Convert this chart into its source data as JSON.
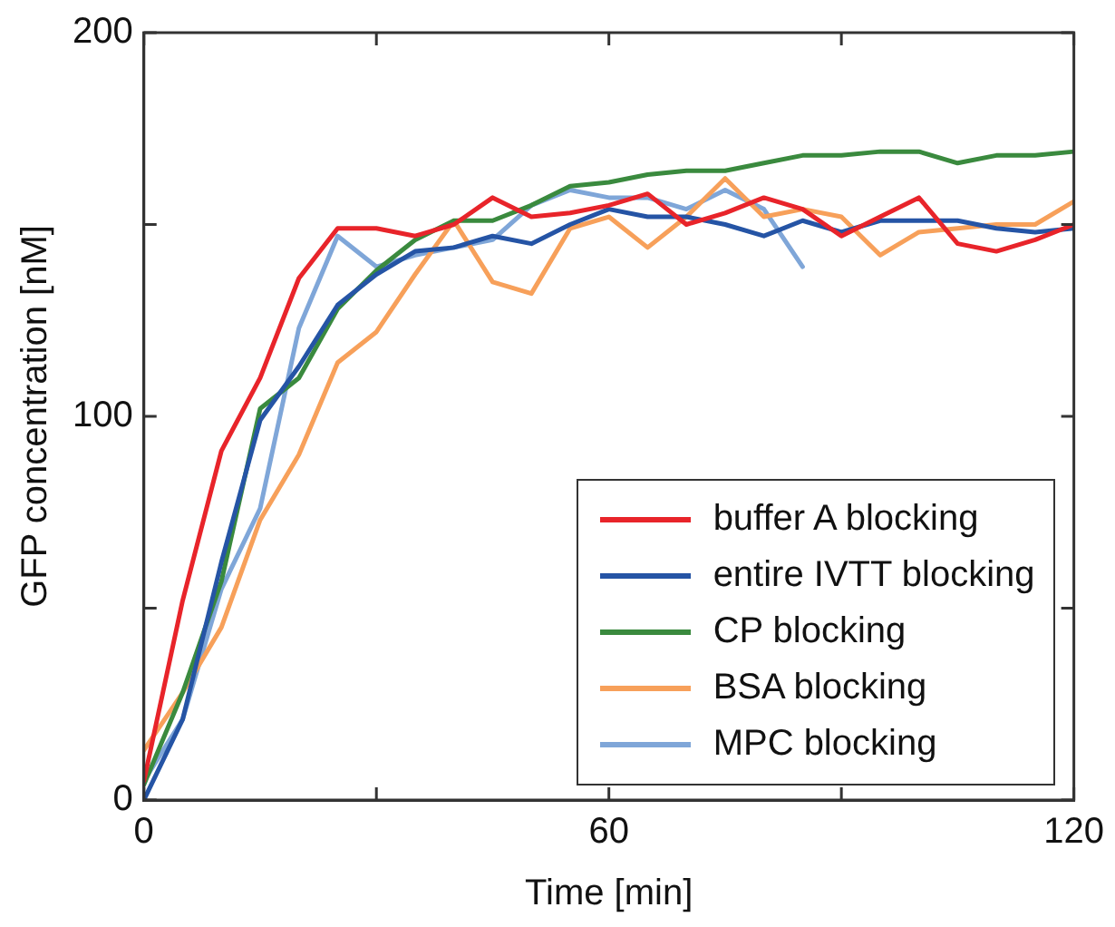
{
  "chart_data": {
    "type": "line",
    "xlabel": "Time [min]",
    "ylabel": "GFP concentration [nM]",
    "x": [
      0,
      5,
      10,
      15,
      20,
      25,
      30,
      35,
      40,
      45,
      50,
      55,
      60,
      65,
      70,
      75,
      80,
      85,
      90,
      95,
      100,
      105,
      110,
      115,
      120
    ],
    "xlim": [
      0,
      120
    ],
    "xticks": [
      0,
      {
        "value": 30,
        "label": null
      },
      60,
      {
        "value": 90,
        "label": null
      },
      120
    ],
    "ylim": [
      0,
      200
    ],
    "yticks": [
      0,
      {
        "value": 50,
        "label": null
      },
      100,
      {
        "value": 150,
        "label": null
      },
      200
    ],
    "grid": false,
    "legend": "bottom right",
    "marker": "none",
    "line_style": "solid",
    "series": [
      {
        "name": "buffer A blocking",
        "color": "#e8242a",
        "values": [
          5,
          52,
          91,
          110,
          136,
          149,
          149,
          147,
          150,
          157,
          152,
          153,
          155,
          158,
          150,
          153,
          157,
          154,
          147,
          152,
          157,
          145,
          143,
          146,
          150
        ]
      },
      {
        "name": "entire IVTT blocking",
        "color": "#2554a5",
        "values": [
          0,
          21,
          62,
          99,
          113,
          129,
          137,
          143,
          144,
          147,
          145,
          150,
          154,
          152,
          152,
          150,
          147,
          151,
          148,
          151,
          151,
          151,
          149,
          148,
          149
        ]
      },
      {
        "name": "CP blocking",
        "color": "#3a8a3e",
        "values": [
          4,
          28,
          57,
          102,
          110,
          128,
          138,
          146,
          151,
          151,
          155,
          160,
          161,
          163,
          164,
          164,
          166,
          168,
          168,
          169,
          169,
          166,
          168,
          168,
          169
        ]
      },
      {
        "name": "BSA blocking",
        "color": "#f7a05a",
        "values": [
          13,
          28,
          45,
          73,
          90,
          114,
          122,
          137,
          151,
          135,
          132,
          149,
          152,
          144,
          152,
          162,
          152,
          154,
          152,
          142,
          148,
          149,
          150,
          150,
          156
        ]
      },
      {
        "name": "MPC blocking",
        "color": "#7fa6d8",
        "values": [
          5,
          21,
          55,
          76,
          123,
          147,
          139,
          142,
          144,
          146,
          155,
          159,
          157,
          157,
          154,
          159,
          154,
          139,
          null,
          null,
          null,
          null,
          null,
          null,
          null
        ]
      }
    ]
  }
}
